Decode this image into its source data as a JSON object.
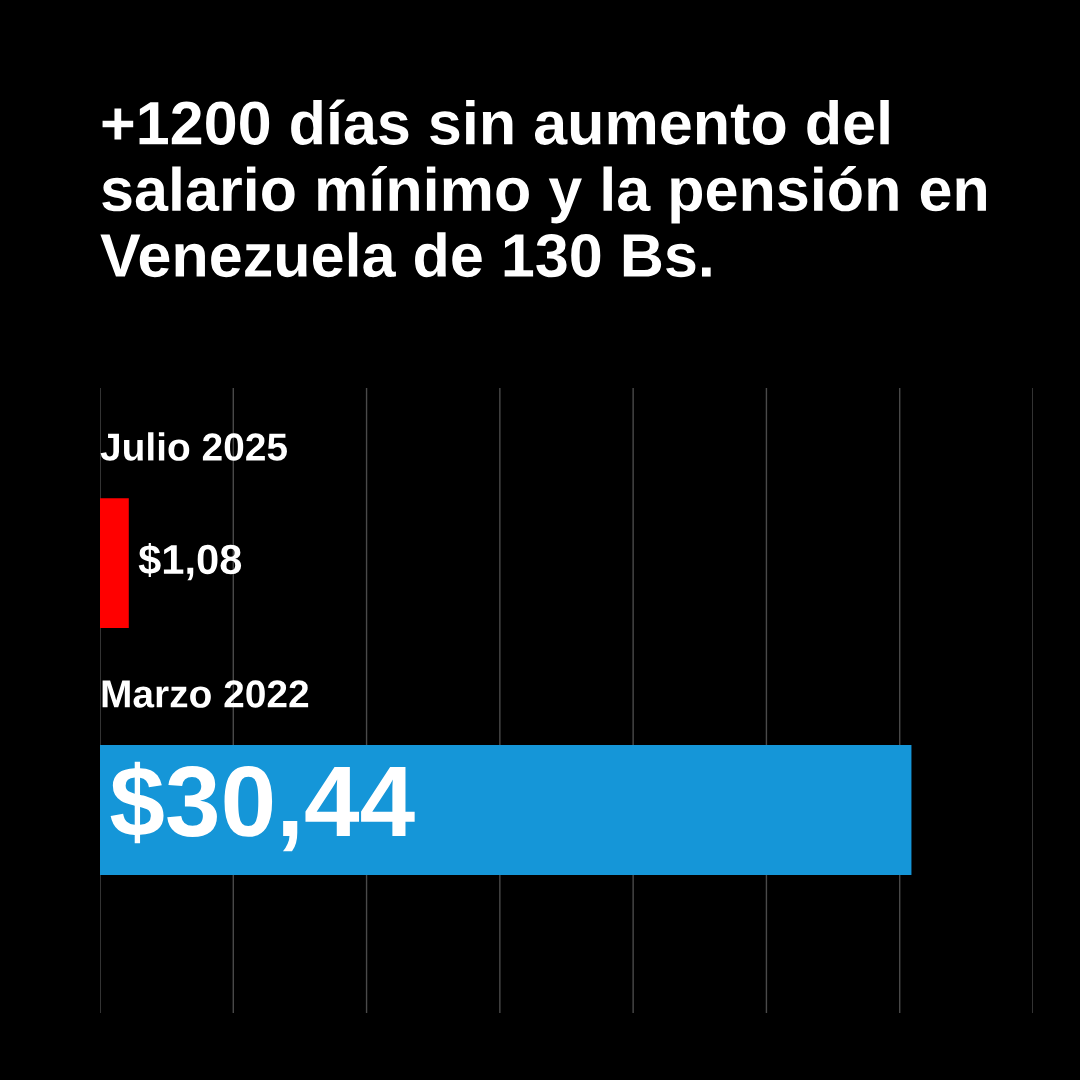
{
  "chart_data": {
    "type": "bar",
    "orientation": "horizontal",
    "title": "+1200 días sin aumento del salario mínimo y la pensión en Venezuela de 130 Bs.",
    "categories": [
      "Julio 2025",
      "Marzo 2022"
    ],
    "values": [
      1.08,
      30.44
    ],
    "colors": [
      "#ff0000",
      "#1596d8"
    ],
    "value_labels": [
      "$1,08",
      "$30,44"
    ],
    "xlim": [
      0,
      35
    ],
    "xticks": [
      {
        "value": 0,
        "label": null
      },
      {
        "value": 5,
        "label": null
      },
      {
        "value": 10,
        "label": null
      },
      {
        "value": 15,
        "label": null
      },
      {
        "value": 20,
        "label": null
      },
      {
        "value": 25,
        "label": null
      },
      {
        "value": 30,
        "label": null
      },
      {
        "value": 35,
        "label": null
      }
    ],
    "grid": "x"
  }
}
